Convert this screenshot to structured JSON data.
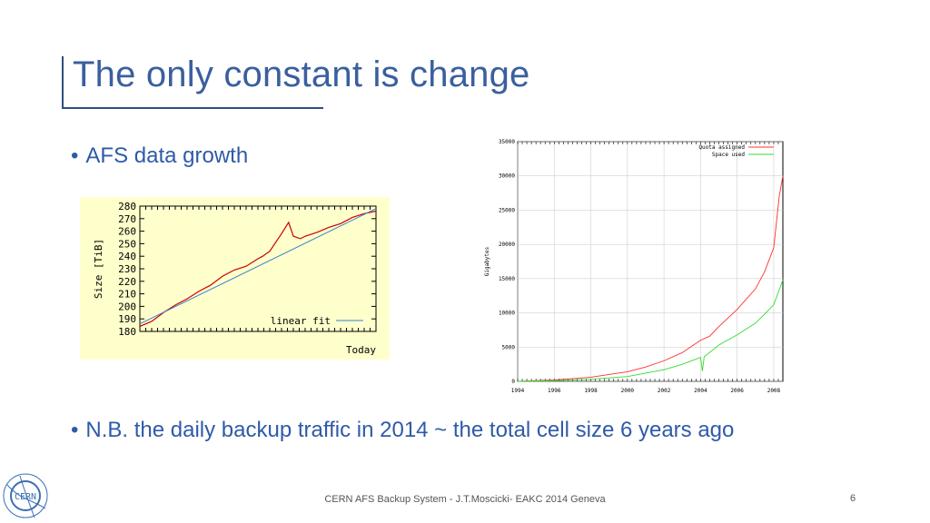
{
  "slide": {
    "title": "The only constant is change",
    "bullets": [
      "AFS data growth",
      "N.B. the daily backup traffic in 2014 ~ the total cell size 6 years ago"
    ],
    "bullet_glyph": "•",
    "footer": "CERN AFS Backup System - J.T.Moscicki- EAKC 2014 Geneva",
    "page_number": "6",
    "logo_text": "CERN",
    "colors": {
      "title": "#3a5f9e",
      "bullet": "#2f5aa8",
      "chart1_bg": "#ffffcc"
    }
  },
  "chart_data": [
    {
      "type": "line",
      "ylabel": "Size [TiB]",
      "xlabel": "Today",
      "ylim": [
        180,
        280
      ],
      "yticks": [
        180,
        190,
        200,
        210,
        220,
        230,
        240,
        250,
        260,
        270,
        280
      ],
      "legend": "linear fit",
      "legend_position": "bottom-right",
      "series": [
        {
          "color": "#cc0000",
          "x": [
            0,
            0.05,
            0.1,
            0.15,
            0.2,
            0.25,
            0.3,
            0.35,
            0.4,
            0.45,
            0.5,
            0.52,
            0.55,
            0.6,
            0.63,
            0.65,
            0.68,
            0.7,
            0.75,
            0.8,
            0.85,
            0.9,
            0.95,
            1.0
          ],
          "values": [
            184,
            188,
            195,
            201,
            206,
            212,
            217,
            224,
            229,
            232,
            238,
            240,
            244,
            258,
            267,
            256,
            254,
            256,
            259,
            263,
            266,
            271,
            274,
            276
          ]
        },
        {
          "name": "linear fit",
          "color": "#3a7fd5",
          "x": [
            0,
            1
          ],
          "values": [
            186,
            278
          ]
        }
      ]
    },
    {
      "type": "line",
      "ylabel": "Gigabytes",
      "ylim": [
        0,
        35000
      ],
      "yticks": [
        0,
        5000,
        10000,
        15000,
        20000,
        25000,
        30000,
        35000
      ],
      "xlim": [
        1994,
        2008.5
      ],
      "xticks": [
        1994,
        1996,
        1998,
        2000,
        2002,
        2004,
        2006,
        2008
      ],
      "legend_position": "top-right",
      "series": [
        {
          "name": "Quota assigned",
          "color": "#ff3030",
          "x": [
            1994,
            1996,
            1998,
            2000,
            2001,
            2002,
            2003,
            2004,
            2004.5,
            2005,
            2006,
            2007,
            2007.5,
            2008,
            2008.3,
            2008.5
          ],
          "values": [
            0,
            200,
            600,
            1400,
            2100,
            3000,
            4200,
            6000,
            6600,
            8000,
            10500,
            13500,
            16000,
            19500,
            27000,
            30000
          ]
        },
        {
          "name": "Space used",
          "color": "#30dd30",
          "x": [
            1994,
            1996,
            1998,
            2000,
            2002,
            2003,
            2004,
            2004.1,
            2004.2,
            2005,
            2006,
            2007,
            2007.5,
            2008,
            2008.5
          ],
          "values": [
            0,
            100,
            300,
            700,
            1700,
            2500,
            3500,
            1500,
            3600,
            5300,
            6800,
            8500,
            9800,
            11200,
            14800
          ]
        }
      ]
    }
  ]
}
